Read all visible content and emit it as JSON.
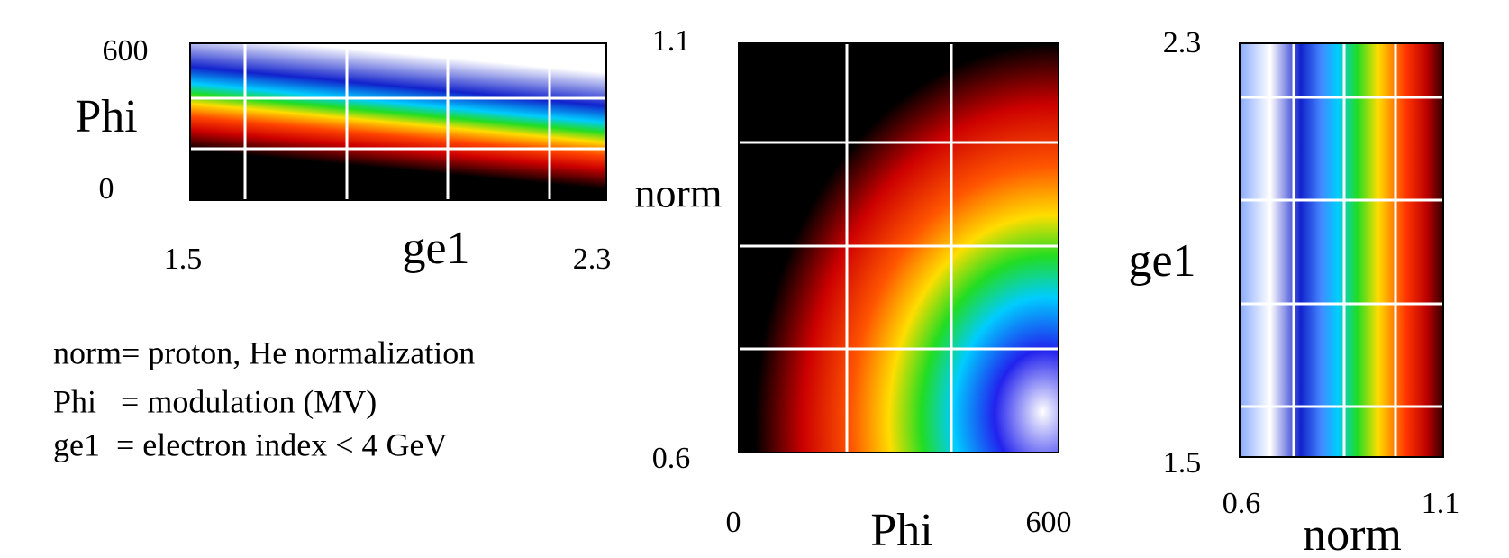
{
  "panels": [
    {
      "y_max": "600",
      "y_label": "Phi",
      "y_min": "0",
      "x_min": "1.5",
      "x_label": "ge1",
      "x_max": "2.3"
    },
    {
      "y_max": "1.1",
      "y_label": "norm",
      "y_min": "0.6",
      "x_min": "0",
      "x_label": "Phi",
      "x_max": "600"
    },
    {
      "y_max": "2.3",
      "y_label": "ge1",
      "y_min": "1.5",
      "x_min": "0.6",
      "x_label": "norm",
      "x_max": "1.1"
    }
  ],
  "notes": [
    "norm= proton, He normalization",
    "Phi   = modulation (MV)",
    "ge1  = electron index < 4 GeV"
  ]
}
